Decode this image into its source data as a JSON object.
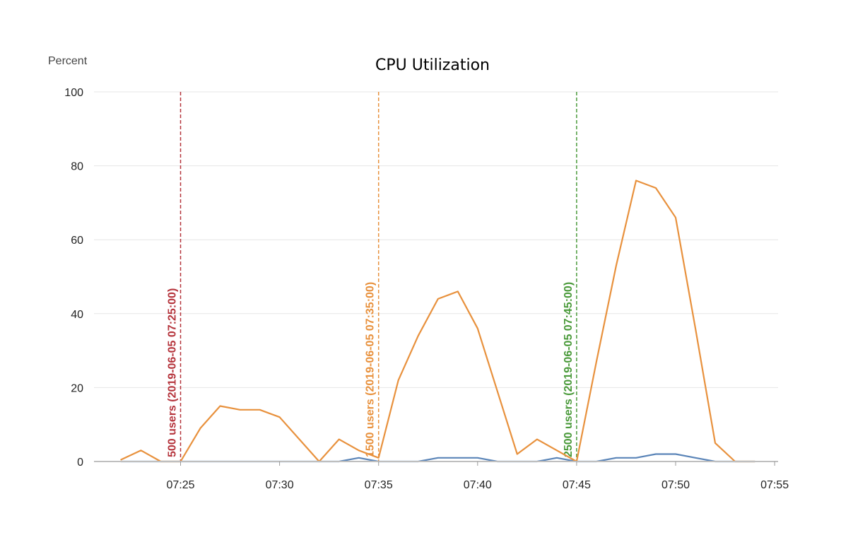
{
  "chart_data": {
    "type": "line",
    "title": "CPU Utilization",
    "ylabel": "Percent",
    "xlabel": "",
    "ylim": [
      0,
      100
    ],
    "yticks": [
      0,
      20,
      40,
      60,
      80,
      100
    ],
    "xlim": [
      "07:22",
      "07:55"
    ],
    "xticks": [
      "07:25",
      "07:30",
      "07:35",
      "07:40",
      "07:45",
      "07:50",
      "07:55"
    ],
    "grid": true,
    "x": [
      "07:22",
      "07:23",
      "07:24",
      "07:25",
      "07:26",
      "07:27",
      "07:28",
      "07:29",
      "07:30",
      "07:31",
      "07:32",
      "07:33",
      "07:34",
      "07:35",
      "07:36",
      "07:37",
      "07:38",
      "07:39",
      "07:40",
      "07:41",
      "07:42",
      "07:43",
      "07:44",
      "07:45",
      "07:46",
      "07:47",
      "07:48",
      "07:49",
      "07:50",
      "07:51",
      "07:52",
      "07:53",
      "07:54"
    ],
    "series": [
      {
        "color": "#e8913d",
        "values": [
          0.5,
          3,
          0,
          0,
          9,
          15,
          14,
          14,
          12,
          6,
          0,
          6,
          3,
          1,
          22,
          34,
          44,
          46,
          36,
          19,
          2,
          6,
          3,
          0,
          27,
          53,
          76,
          74,
          66,
          36,
          5,
          0,
          0
        ]
      },
      {
        "color": "#5b85b8",
        "values": [
          0,
          0,
          0,
          0,
          0,
          0,
          0,
          0,
          0,
          0,
          0,
          0,
          1,
          0,
          0,
          0,
          1,
          1,
          1,
          0,
          0,
          0,
          1,
          0,
          0,
          1,
          1,
          2,
          2,
          1,
          0,
          0,
          0
        ]
      }
    ],
    "annotations": [
      {
        "x": "07:25",
        "label": "500 users (2019-06-05 07:25:00)",
        "color": "#b5343c"
      },
      {
        "x": "07:35",
        "label": "1500 users (2019-06-05 07:35:00)",
        "color": "#e8913d"
      },
      {
        "x": "07:45",
        "label": "2500 users (2019-06-05 07:45:00)",
        "color": "#4a9a3a"
      }
    ]
  }
}
